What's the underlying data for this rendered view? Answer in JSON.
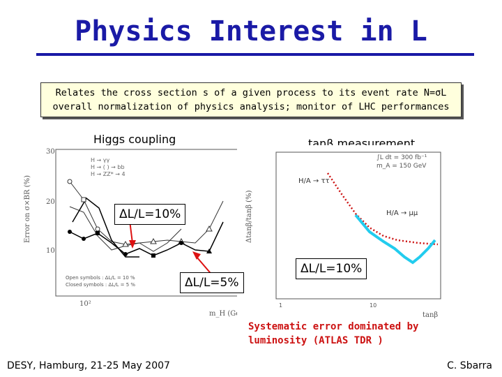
{
  "slide": {
    "title": "Physics Interest in L",
    "summary_line1": "Relates the cross section s of a given process to its event rate N=σL",
    "summary_line2": "overall normalization of physics analysis; monitor of LHC performances",
    "left_label": "Higgs coupling",
    "right_label": "tanβ measurement",
    "callout_left_top": "ΔL/L=10%",
    "callout_left_bottom": "ΔL/L=5%",
    "callout_right": "ΔL/L=10%",
    "note_line1": "Systematic error dominated by",
    "note_line2": "luminosity  (ATLAS TDR )",
    "footer_left": "DESY, Hamburg, 21-25 May 2007",
    "footer_right": "C. Sbarra"
  },
  "colors": {
    "title": "#1a1aa6",
    "summary_bg": "#ffffdd",
    "note": "#cc1111",
    "arrow": "#dd1111",
    "cyan_curve": "#22ccee",
    "red_curve": "#cc1111"
  },
  "left_plot": {
    "ylabel": "Error on σ×BR (%)",
    "y_ticks": [
      "30",
      "20",
      "10"
    ],
    "x_ticks": [
      "10²"
    ],
    "xlabel": "m_H (GeV)",
    "legend": [
      "H → γγ",
      "H → ( ) → bb",
      "H → ZZ* → 4"
    ],
    "footnotes": [
      "Open symbols : ΔL/L = 10 %",
      "Closed symbols : ΔL/L = 5 %"
    ]
  },
  "right_plot": {
    "ylabel": "Δtanβ/tanβ (%)",
    "xlabel": "tanβ",
    "x_ticks": [
      "1",
      "10"
    ],
    "legend_line1": "∫L dt = 300 fb⁻¹",
    "legend_line2": "m_A = 150 GeV",
    "channel_upper": "H/A → ττ",
    "channel_lower": "H/A → μμ"
  }
}
